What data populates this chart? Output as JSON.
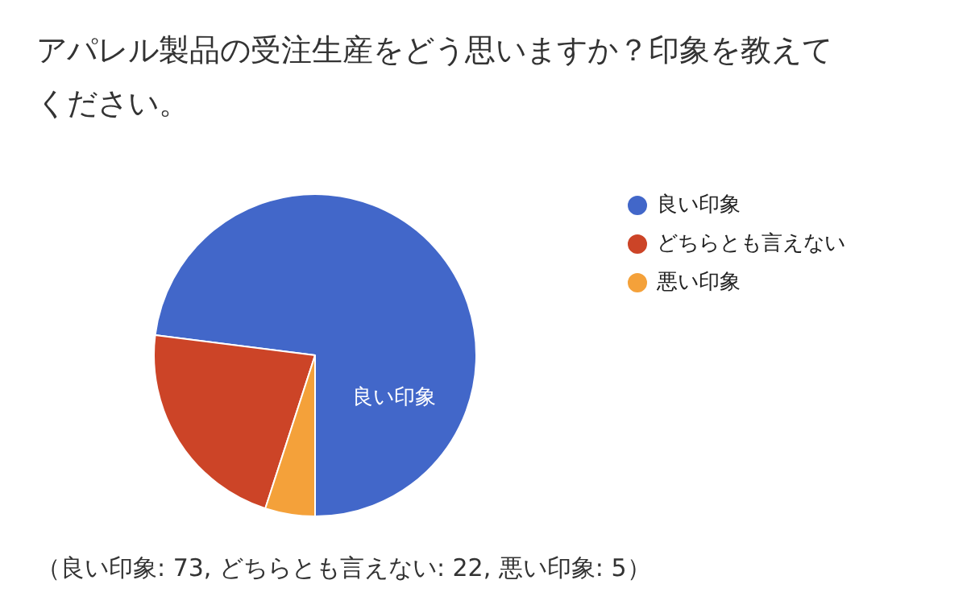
{
  "chart_data": {
    "type": "pie",
    "title": "アパレル製品の受注生産をどう思いますか？印象を教えてください。",
    "categories": [
      "良い印象",
      "どちらとも言えない",
      "悪い印象"
    ],
    "values": [
      73,
      22,
      5
    ],
    "colors": [
      "#4267c9",
      "#cc4427",
      "#f4a13a"
    ],
    "value_labels": [
      "良い印象",
      null,
      null
    ],
    "legend": "right",
    "annotations": [
      "（良い印象: 73, どちらとも言えない: 22, 悪い印象: 5）"
    ]
  }
}
